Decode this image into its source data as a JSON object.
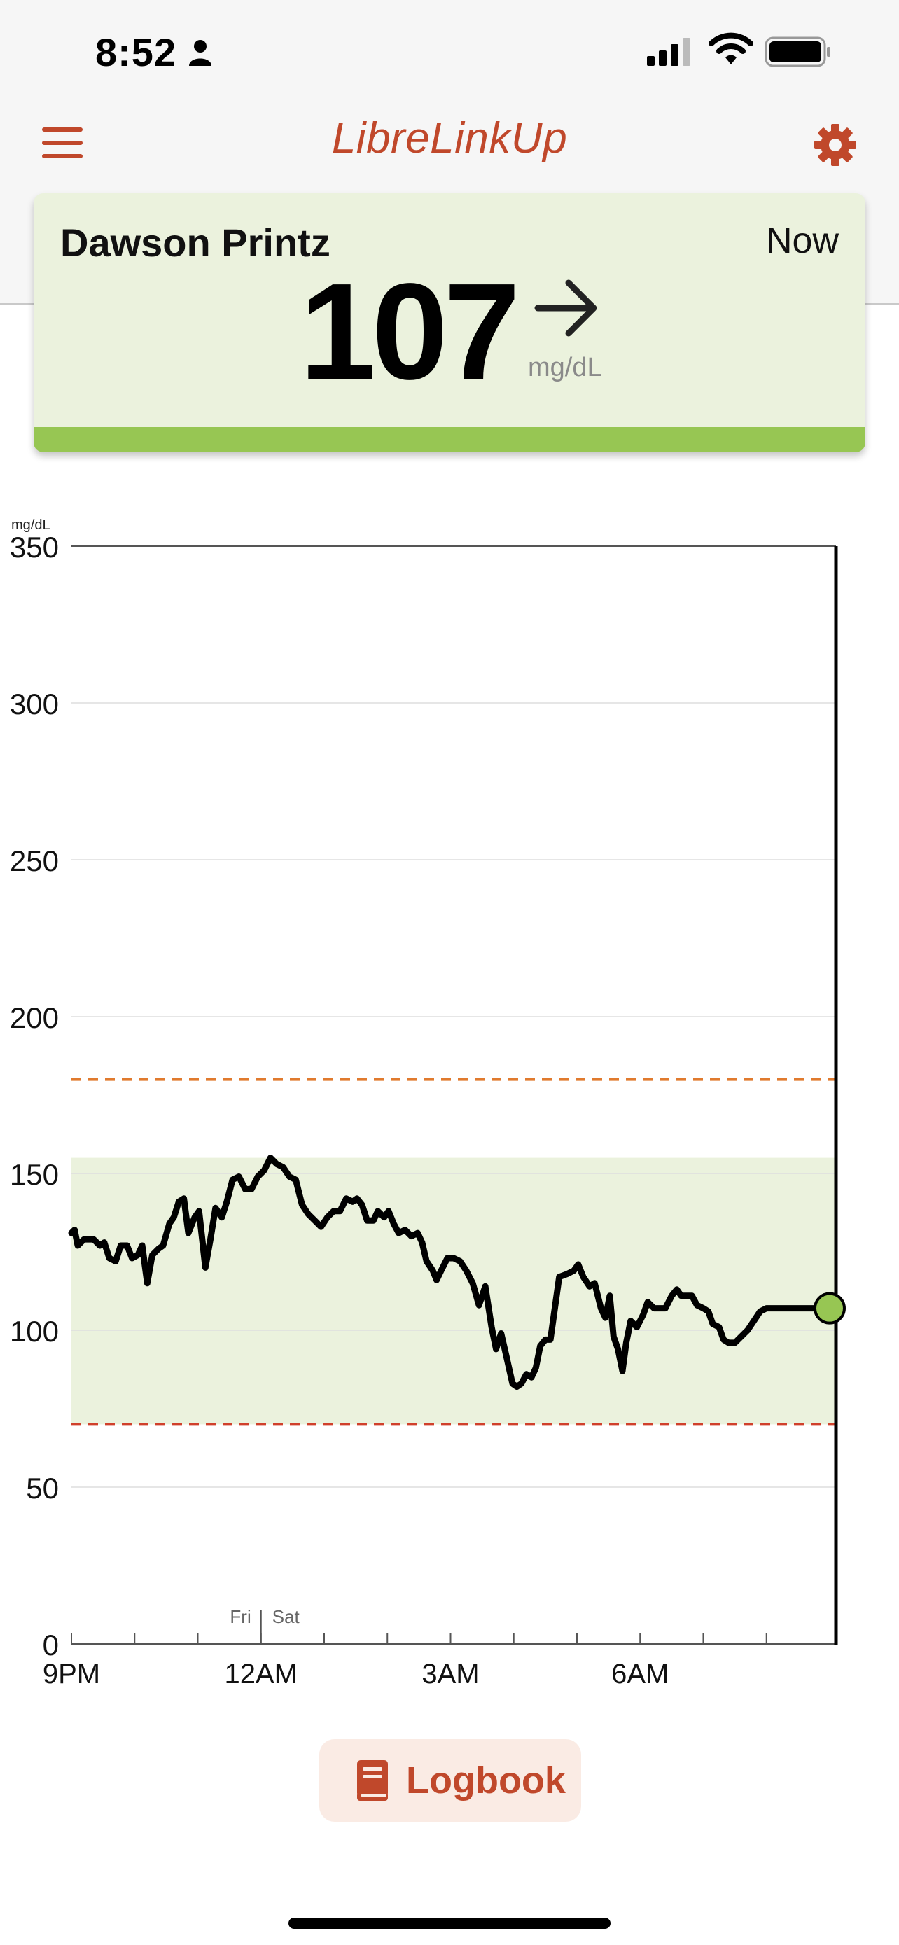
{
  "status_bar": {
    "time": "8:52",
    "icons": [
      "person-icon",
      "cellular-signal-icon",
      "wifi-icon",
      "battery-icon"
    ]
  },
  "header": {
    "title": "LibreLinkUp",
    "menu_icon": "hamburger-menu-icon",
    "settings_icon": "gear-icon",
    "accent_color": "#c0482b"
  },
  "reading_card": {
    "patient_name": "Dawson Printz",
    "time_label": "Now",
    "glucose_value": "107",
    "unit": "mg/dL",
    "trend": "steady",
    "trend_icon": "arrow-right-icon",
    "background_color": "#ebf2dd",
    "status_color": "#97c653"
  },
  "chart_data": {
    "type": "line",
    "y_unit_label": "mg/dL",
    "ylim": [
      0,
      350
    ],
    "y_ticks": [
      "0",
      "50",
      "100",
      "150",
      "200",
      "250",
      "300",
      "350"
    ],
    "y_tick_values": [
      0,
      50,
      100,
      150,
      200,
      250,
      300,
      350
    ],
    "x_range_hours": [
      21,
      33.1
    ],
    "x_tick_labels": [
      "9PM",
      "12AM",
      "3AM",
      "6AM"
    ],
    "x_tick_hours": [
      21,
      24,
      27,
      30
    ],
    "minor_tick_hours": [
      22,
      23,
      25,
      26,
      28,
      29,
      31,
      32
    ],
    "day_divider": {
      "hour": 24,
      "left_label": "Fri",
      "right_label": "Sat"
    },
    "target_range": {
      "low": 70,
      "high": 155,
      "color": "#ebf2dd"
    },
    "high_threshold": {
      "value": 180,
      "color": "#e07a2e"
    },
    "low_threshold": {
      "value": 70,
      "color": "#d0402b"
    },
    "current_point": {
      "hour": 33.0,
      "value": 107,
      "color": "#97c653"
    },
    "grid": true,
    "series": [
      {
        "points": [
          [
            21.0,
            131
          ],
          [
            21.05,
            132
          ],
          [
            21.1,
            127
          ],
          [
            21.2,
            129
          ],
          [
            21.35,
            129
          ],
          [
            21.45,
            127
          ],
          [
            21.52,
            128
          ],
          [
            21.6,
            123
          ],
          [
            21.7,
            122
          ],
          [
            21.78,
            127
          ],
          [
            21.88,
            127
          ],
          [
            21.96,
            123
          ],
          [
            22.05,
            124
          ],
          [
            22.12,
            127
          ],
          [
            22.2,
            115
          ],
          [
            22.28,
            124
          ],
          [
            22.38,
            126
          ],
          [
            22.45,
            127
          ],
          [
            22.55,
            134
          ],
          [
            22.62,
            136
          ],
          [
            22.7,
            141
          ],
          [
            22.78,
            142
          ],
          [
            22.85,
            131
          ],
          [
            22.95,
            136
          ],
          [
            23.02,
            138
          ],
          [
            23.12,
            120
          ],
          [
            23.2,
            129
          ],
          [
            23.28,
            139
          ],
          [
            23.38,
            136
          ],
          [
            23.46,
            141
          ],
          [
            23.55,
            148
          ],
          [
            23.65,
            149
          ],
          [
            23.75,
            145
          ],
          [
            23.85,
            145
          ],
          [
            23.95,
            149
          ],
          [
            24.05,
            151
          ],
          [
            24.15,
            155
          ],
          [
            24.25,
            153
          ],
          [
            24.35,
            152
          ],
          [
            24.45,
            149
          ],
          [
            24.55,
            148
          ],
          [
            24.65,
            140
          ],
          [
            24.75,
            137
          ],
          [
            24.85,
            135
          ],
          [
            24.95,
            133
          ],
          [
            25.05,
            136
          ],
          [
            25.15,
            138
          ],
          [
            25.25,
            138
          ],
          [
            25.35,
            142
          ],
          [
            25.45,
            141
          ],
          [
            25.52,
            142
          ],
          [
            25.6,
            140
          ],
          [
            25.68,
            135
          ],
          [
            25.78,
            135
          ],
          [
            25.85,
            138
          ],
          [
            25.95,
            136
          ],
          [
            26.02,
            138
          ],
          [
            26.1,
            134
          ],
          [
            26.18,
            131
          ],
          [
            26.28,
            132
          ],
          [
            26.38,
            130
          ],
          [
            26.48,
            131
          ],
          [
            26.55,
            128
          ],
          [
            26.62,
            122
          ],
          [
            26.72,
            119
          ],
          [
            26.78,
            116
          ],
          [
            26.85,
            119
          ],
          [
            26.95,
            123
          ],
          [
            27.05,
            123
          ],
          [
            27.15,
            122
          ],
          [
            27.25,
            119
          ],
          [
            27.35,
            115
          ],
          [
            27.45,
            108
          ],
          [
            27.55,
            114
          ],
          [
            27.65,
            101
          ],
          [
            27.72,
            94
          ],
          [
            27.8,
            99
          ],
          [
            27.88,
            92
          ],
          [
            27.98,
            83
          ],
          [
            28.05,
            82
          ],
          [
            28.12,
            83
          ],
          [
            28.2,
            86
          ],
          [
            28.28,
            85
          ],
          [
            28.35,
            88
          ],
          [
            28.42,
            95
          ],
          [
            28.5,
            97
          ],
          [
            28.58,
            97
          ],
          [
            28.65,
            107
          ],
          [
            28.72,
            117
          ],
          [
            28.85,
            118
          ],
          [
            28.95,
            119
          ],
          [
            29.02,
            121
          ],
          [
            29.1,
            117
          ],
          [
            29.2,
            114
          ],
          [
            29.28,
            115
          ],
          [
            29.38,
            107
          ],
          [
            29.45,
            104
          ],
          [
            29.52,
            111
          ],
          [
            29.58,
            98
          ],
          [
            29.65,
            94
          ],
          [
            29.72,
            87
          ],
          [
            29.78,
            96
          ],
          [
            29.85,
            103
          ],
          [
            29.95,
            101
          ],
          [
            30.05,
            105
          ],
          [
            30.12,
            109
          ],
          [
            30.22,
            107
          ],
          [
            30.32,
            107
          ],
          [
            30.4,
            107
          ],
          [
            30.5,
            111
          ],
          [
            30.58,
            113
          ],
          [
            30.65,
            111
          ],
          [
            30.75,
            111
          ],
          [
            30.82,
            111
          ],
          [
            30.9,
            108
          ],
          [
            31.0,
            107
          ],
          [
            31.08,
            106
          ],
          [
            31.15,
            102
          ],
          [
            31.25,
            101
          ],
          [
            31.32,
            97
          ],
          [
            31.4,
            96
          ],
          [
            31.5,
            96
          ],
          [
            31.6,
            98
          ],
          [
            31.7,
            100
          ],
          [
            31.8,
            103
          ],
          [
            31.9,
            106
          ],
          [
            32.0,
            107
          ]
        ]
      }
    ]
  },
  "logbook_button": {
    "label": "Logbook",
    "icon": "book-icon"
  }
}
